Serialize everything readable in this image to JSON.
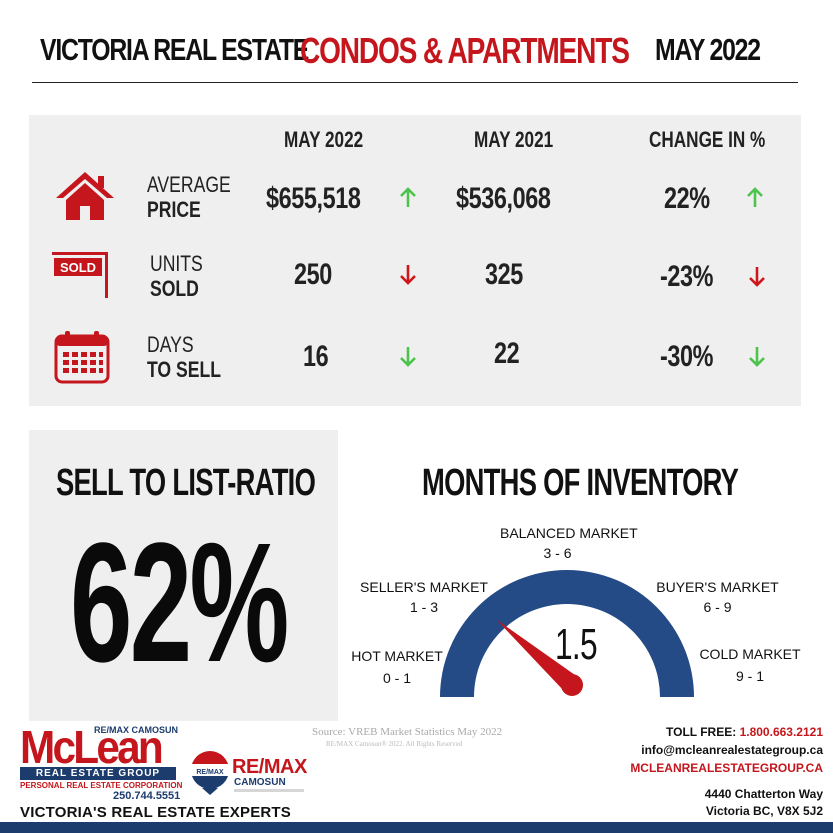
{
  "header": {
    "left": "VICTORIA REAL ESTATE",
    "center": "CONDOS & APARTMENTS",
    "right": "MAY 2022"
  },
  "stats": {
    "columns": [
      "MAY 2022",
      "MAY 2021",
      "CHANGE IN %"
    ],
    "rows": [
      {
        "label_top": "AVERAGE",
        "label_bottom": "PRICE",
        "current": "$655,518",
        "current_trend": "up",
        "previous": "$536,068",
        "change": "22%",
        "change_trend": "up",
        "icon": "house-icon"
      },
      {
        "label_top": "UNITS",
        "label_bottom": "SOLD",
        "current": "250",
        "current_trend": "down",
        "previous": "325",
        "change": "-23%",
        "change_trend": "down",
        "icon": "sold-sign-icon"
      },
      {
        "label_top": "DAYS",
        "label_bottom": "TO SELL",
        "current": "16",
        "current_trend": "down",
        "previous": "22",
        "change": "-30%",
        "change_trend": "down",
        "icon": "calendar-icon"
      }
    ],
    "sold_sign_text": "SOLD"
  },
  "sell_to_list": {
    "title": "SELL TO LIST-RATIO",
    "value": "62%"
  },
  "inventory": {
    "title": "MONTHS OF INVENTORY",
    "value": "1.5",
    "value_num": 1.5,
    "segments": [
      {
        "name": "HOT MARKET",
        "range": "0 - 1"
      },
      {
        "name": "SELLER'S MARKET",
        "range": "1 - 3"
      },
      {
        "name": "BALANCED MARKET",
        "range": "3 - 6"
      },
      {
        "name": "BUYER'S MARKET",
        "range": "6 - 9"
      },
      {
        "name": "COLD MARKET",
        "range": "9 - 1"
      }
    ]
  },
  "footer": {
    "source": "Source: VREB Market Statistics May 2022",
    "copyright": "RE/MAX Camosun® 2022. All Rights Reserved",
    "mclean_brand_top": "RE/MAX CAMOSUN",
    "mclean_name": "McLean",
    "mclean_group": "REAL ESTATE GROUP",
    "mclean_corp": "PERSONAL REAL ESTATE CORPORATION",
    "mclean_phone": "250.744.5551",
    "remax_name": "RE/MAX",
    "remax_sub": "CAMOSUN",
    "remax_balloon": "RE/MAX",
    "tagline": "VICTORIA'S REAL ESTATE EXPERTS",
    "toll_free_label": "TOLL FREE:",
    "toll_free_number": "1.800.663.2121",
    "email": "info@mcleanrealestategroup.ca",
    "website": "MCLEANREALESTATEGROUP.CA",
    "address_line1": "4440 Chatterton Way",
    "address_line2": "Victoria BC, V8X 5J2"
  },
  "colors": {
    "accent_red": "#c4161c",
    "up_green": "#4cc44c",
    "down_red": "#d0161c",
    "gauge_blue": "#244b86",
    "navy": "#1d3c6e"
  }
}
